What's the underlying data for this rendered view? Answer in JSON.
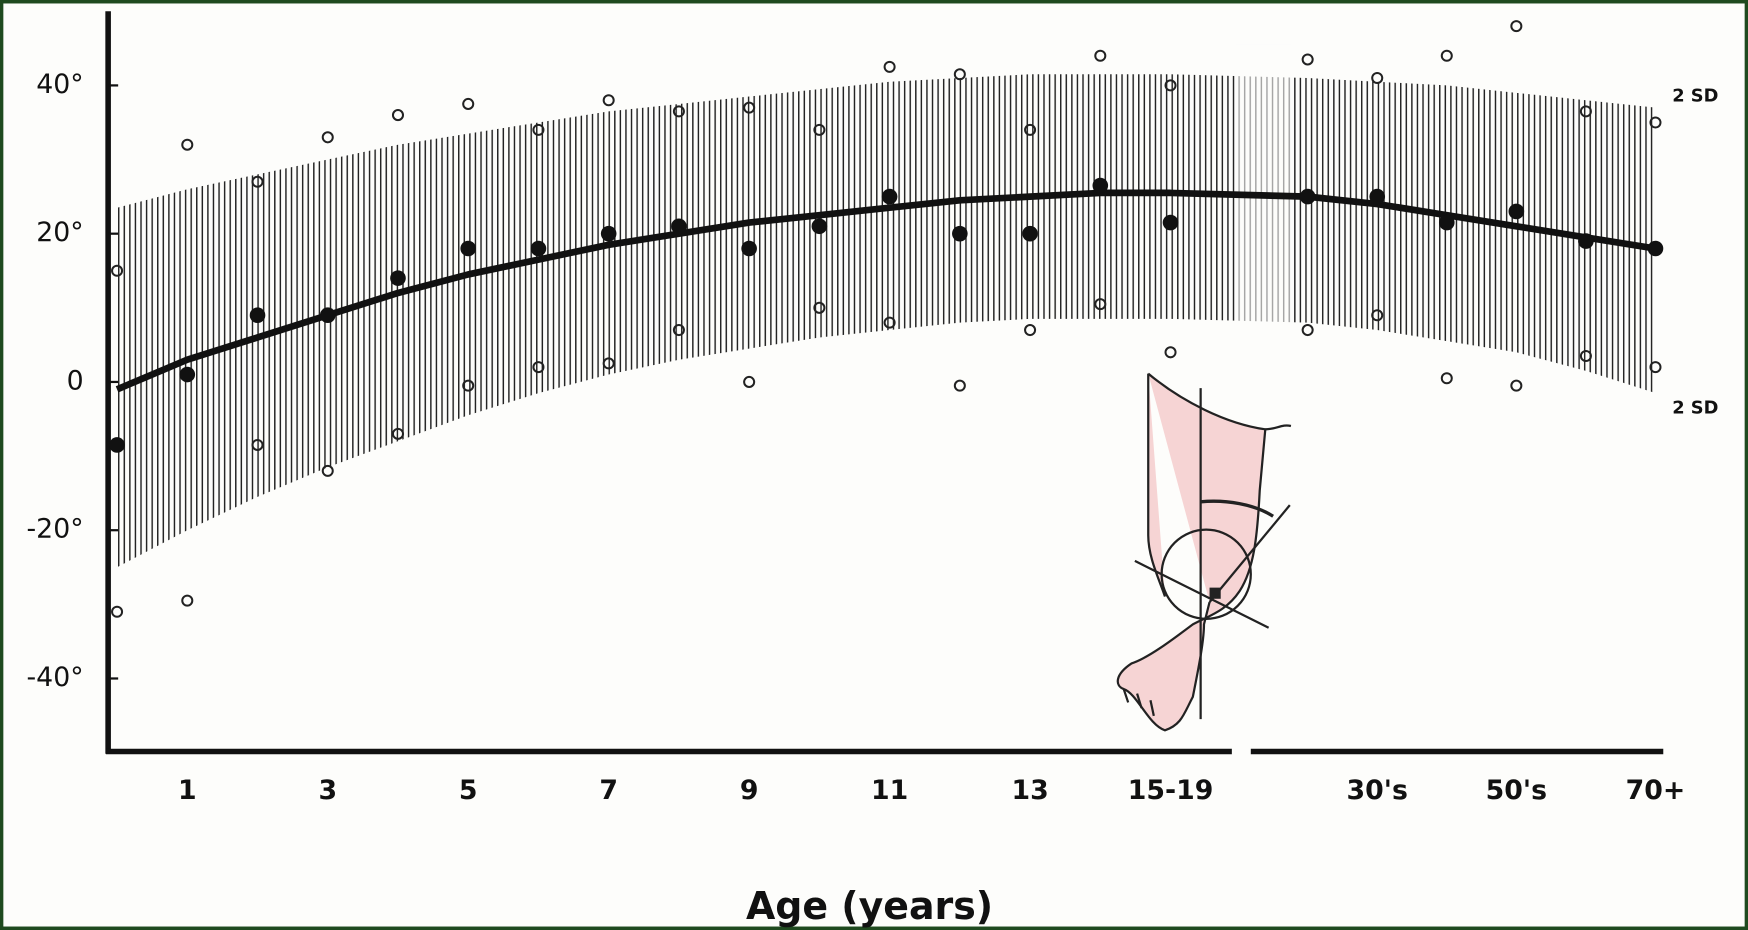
{
  "chart_data": {
    "type": "line",
    "x_label": "Age (years)",
    "categories": [
      null,
      "1",
      null,
      "3",
      null,
      "5",
      null,
      "7",
      null,
      "9",
      null,
      "11",
      null,
      "13",
      null,
      "15-19",
      null,
      "30's",
      null,
      "50's",
      null,
      "70+"
    ],
    "ylim": [
      -50,
      50
    ],
    "yticks": [
      {
        "value": -40,
        "label": "-40°"
      },
      {
        "value": -20,
        "label": "-20°"
      },
      0,
      {
        "value": 20,
        "label": "20°"
      },
      {
        "value": 40,
        "label": "40°"
      }
    ],
    "band": {
      "labels": [
        "2 SD",
        "2 SD"
      ],
      "color": "#222222",
      "upper": [
        23.5,
        26,
        28,
        30,
        32,
        33.5,
        35,
        36.5,
        37.5,
        38.5,
        39.5,
        40.5,
        41,
        41.5,
        41.5,
        41.5,
        41,
        40.5,
        40,
        39,
        38,
        37
      ],
      "lower": [
        -25,
        -20,
        -15.5,
        -11.5,
        -8,
        -4.5,
        -1.5,
        1,
        3,
        4.5,
        6,
        7,
        8,
        8.5,
        8.5,
        8.5,
        8,
        7,
        5.5,
        4,
        1.5,
        -1.5
      ]
    },
    "series": [
      {
        "marker": "line",
        "color": "#111111",
        "values": [
          -1,
          3,
          6,
          9,
          12,
          14.5,
          16.5,
          18.5,
          20,
          21.5,
          22.5,
          23.5,
          24.5,
          25,
          25.5,
          25.5,
          25,
          24,
          22.5,
          21,
          19.5,
          18
        ]
      },
      {
        "marker": "filled",
        "color": "#111111",
        "values": [
          -8.5,
          1,
          9,
          9,
          14,
          18,
          18,
          20,
          21,
          18,
          21,
          25,
          20,
          20,
          26.5,
          21.5,
          25,
          25,
          21.5,
          23,
          19,
          18
        ]
      },
      {
        "marker": "open",
        "color": "#222222",
        "values": [
          15,
          32,
          27,
          33,
          36,
          37.5,
          34,
          38,
          36.5,
          37,
          34,
          42.5,
          41.5,
          34,
          44,
          40,
          43.5,
          41,
          44,
          48,
          36.5,
          35
        ]
      },
      {
        "marker": "open",
        "color": "#222222",
        "values": [
          -31,
          -29.5,
          -8.5,
          -12,
          -7,
          -0.5,
          2,
          2.5,
          7,
          0,
          10,
          8,
          -0.5,
          7,
          10.5,
          4,
          7,
          9,
          0.5,
          -0.5,
          3.5,
          2
        ]
      }
    ]
  }
}
